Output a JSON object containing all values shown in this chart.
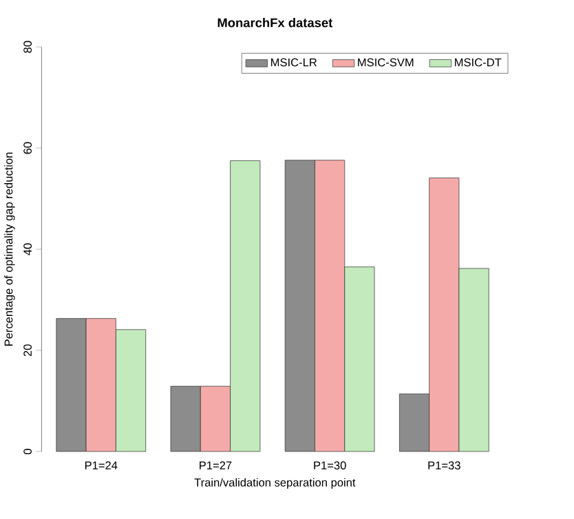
{
  "chart_data": {
    "type": "bar",
    "title": "MonarchFx dataset",
    "xlabel": "Train/validation separation point",
    "ylabel": "Percentage of optimality gap reduction",
    "categories": [
      "P1=24",
      "P1=27",
      "P1=30",
      "P1=33"
    ],
    "series": [
      {
        "name": "MSIC-LR",
        "color": "#8c8c8c",
        "values": [
          26.3,
          12.9,
          57.6,
          11.4
        ]
      },
      {
        "name": "MSIC-SVM",
        "color": "#f5aaaa",
        "values": [
          26.3,
          12.9,
          57.6,
          54.1
        ]
      },
      {
        "name": "MSIC-DT",
        "color": "#c2eabc",
        "values": [
          24.1,
          57.5,
          36.5,
          36.2
        ]
      }
    ],
    "ylim": [
      0,
      80
    ],
    "yticks": [
      0,
      20,
      40,
      60,
      80
    ],
    "legend": "top right"
  }
}
